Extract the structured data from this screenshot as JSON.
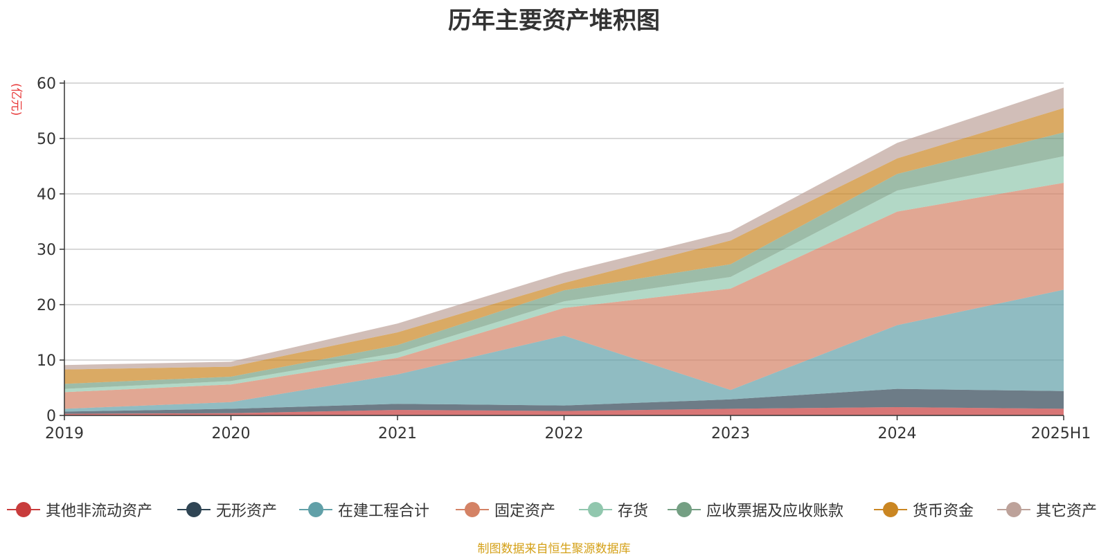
{
  "chart_data": {
    "type": "area",
    "stacked": true,
    "title": "历年主要资产堆积图",
    "ylabel": "(亿元)",
    "xlabel": "",
    "categories": [
      "2019",
      "2020",
      "2021",
      "2022",
      "2023",
      "2024",
      "2025H1"
    ],
    "ylim": [
      0,
      60
    ],
    "yticks": [
      0,
      10,
      20,
      30,
      40,
      50,
      60
    ],
    "grid": true,
    "legend_position": "bottom",
    "series": [
      {
        "name": "其他非流动资产",
        "color": "#c83c3c",
        "values": [
          0.3,
          0.4,
          1.0,
          0.8,
          1.2,
          1.5,
          1.2
        ]
      },
      {
        "name": "无形资产",
        "color": "#2f4554",
        "values": [
          0.4,
          0.8,
          1.1,
          1.0,
          1.7,
          3.3,
          3.2
        ]
      },
      {
        "name": "在建工程合计",
        "color": "#61a0a8",
        "values": [
          0.5,
          1.2,
          5.3,
          12.6,
          1.7,
          11.5,
          18.3
        ]
      },
      {
        "name": "固定资产",
        "color": "#d48265",
        "values": [
          3.0,
          3.2,
          3.0,
          5.0,
          18.3,
          20.5,
          19.3
        ]
      },
      {
        "name": "存货",
        "color": "#91c7ae",
        "values": [
          0.6,
          0.6,
          0.9,
          1.2,
          2.1,
          3.8,
          4.8
        ]
      },
      {
        "name": "应收票据及应收账款",
        "color": "#749f83",
        "values": [
          0.9,
          0.8,
          1.4,
          2.0,
          2.3,
          3.0,
          4.3
        ]
      },
      {
        "name": "货币资金",
        "color": "#ca8622",
        "values": [
          2.6,
          1.8,
          2.3,
          1.3,
          4.3,
          2.8,
          4.4
        ]
      },
      {
        "name": "其它资产",
        "color": "#bda29a",
        "values": [
          0.8,
          0.9,
          1.6,
          1.9,
          1.6,
          2.8,
          3.7
        ]
      }
    ]
  },
  "source_note": "制图数据来自恒生聚源数据库"
}
